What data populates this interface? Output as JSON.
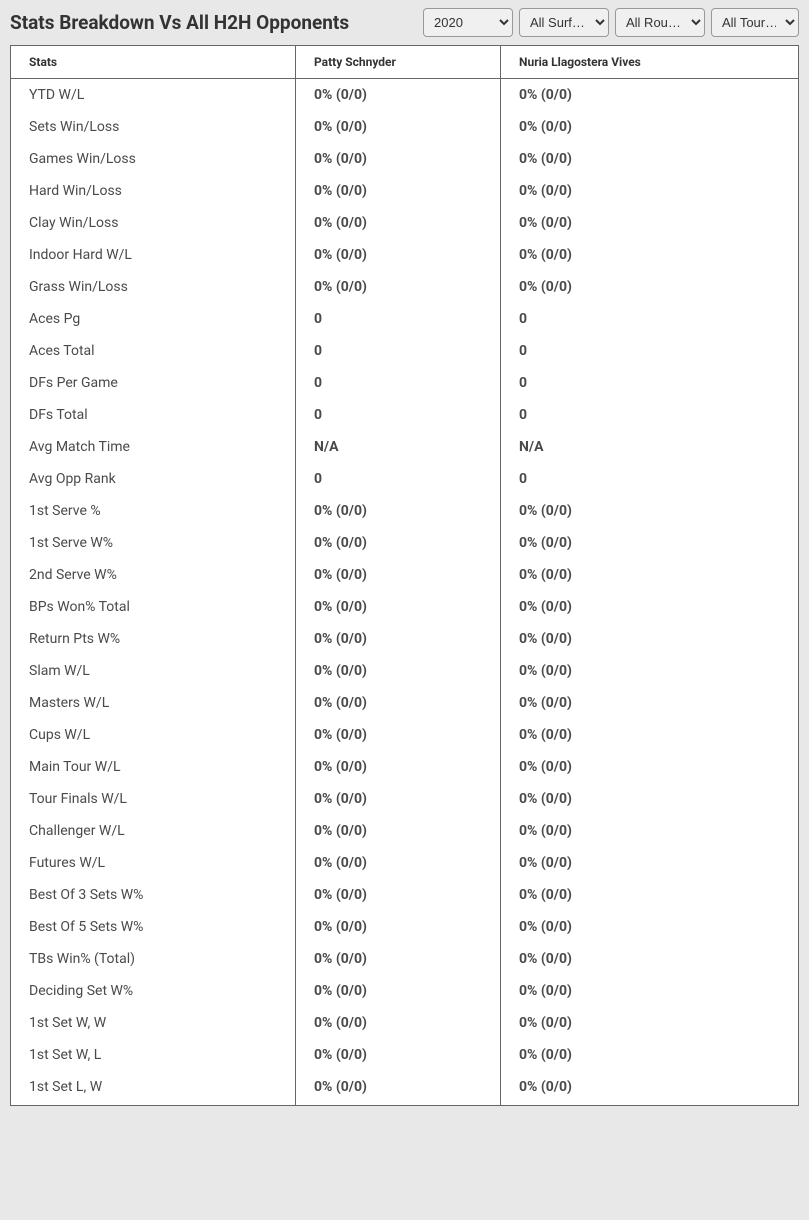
{
  "header": {
    "title": "Stats Breakdown Vs All H2H Opponents"
  },
  "filters": {
    "year": {
      "selected": "2020",
      "options": [
        "2020"
      ]
    },
    "surface": {
      "selected": "All Surf…",
      "options": [
        "All Surf…"
      ]
    },
    "round": {
      "selected": "All Rou…",
      "options": [
        "All Rou…"
      ]
    },
    "tournament": {
      "selected": "All Tour…",
      "options": [
        "All Tour…"
      ]
    }
  },
  "table": {
    "columns": [
      "Stats",
      "Patty Schnyder",
      "Nuria Llagostera Vives"
    ],
    "rows": [
      {
        "stat": "YTD W/L",
        "p1": "0% (0/0)",
        "p2": "0% (0/0)"
      },
      {
        "stat": "Sets Win/Loss",
        "p1": "0% (0/0)",
        "p2": "0% (0/0)"
      },
      {
        "stat": "Games Win/Loss",
        "p1": "0% (0/0)",
        "p2": "0% (0/0)"
      },
      {
        "stat": "Hard Win/Loss",
        "p1": "0% (0/0)",
        "p2": "0% (0/0)"
      },
      {
        "stat": "Clay Win/Loss",
        "p1": "0% (0/0)",
        "p2": "0% (0/0)"
      },
      {
        "stat": "Indoor Hard W/L",
        "p1": "0% (0/0)",
        "p2": "0% (0/0)"
      },
      {
        "stat": "Grass Win/Loss",
        "p1": "0% (0/0)",
        "p2": "0% (0/0)"
      },
      {
        "stat": "Aces Pg",
        "p1": "0",
        "p2": "0"
      },
      {
        "stat": "Aces Total",
        "p1": "0",
        "p2": "0"
      },
      {
        "stat": "DFs Per Game",
        "p1": "0",
        "p2": "0"
      },
      {
        "stat": "DFs Total",
        "p1": "0",
        "p2": "0"
      },
      {
        "stat": "Avg Match Time",
        "p1": "N/A",
        "p2": "N/A"
      },
      {
        "stat": "Avg Opp Rank",
        "p1": "0",
        "p2": "0"
      },
      {
        "stat": "1st Serve %",
        "p1": "0% (0/0)",
        "p2": "0% (0/0)"
      },
      {
        "stat": "1st Serve W%",
        "p1": "0% (0/0)",
        "p2": "0% (0/0)"
      },
      {
        "stat": "2nd Serve W%",
        "p1": "0% (0/0)",
        "p2": "0% (0/0)"
      },
      {
        "stat": "BPs Won% Total",
        "p1": "0% (0/0)",
        "p2": "0% (0/0)"
      },
      {
        "stat": "Return Pts W%",
        "p1": "0% (0/0)",
        "p2": "0% (0/0)"
      },
      {
        "stat": "Slam W/L",
        "p1": "0% (0/0)",
        "p2": "0% (0/0)"
      },
      {
        "stat": "Masters W/L",
        "p1": "0% (0/0)",
        "p2": "0% (0/0)"
      },
      {
        "stat": "Cups W/L",
        "p1": "0% (0/0)",
        "p2": "0% (0/0)"
      },
      {
        "stat": "Main Tour W/L",
        "p1": "0% (0/0)",
        "p2": "0% (0/0)"
      },
      {
        "stat": "Tour Finals W/L",
        "p1": "0% (0/0)",
        "p2": "0% (0/0)"
      },
      {
        "stat": "Challenger W/L",
        "p1": "0% (0/0)",
        "p2": "0% (0/0)"
      },
      {
        "stat": "Futures W/L",
        "p1": "0% (0/0)",
        "p2": "0% (0/0)"
      },
      {
        "stat": "Best Of 3 Sets W%",
        "p1": "0% (0/0)",
        "p2": "0% (0/0)"
      },
      {
        "stat": "Best Of 5 Sets W%",
        "p1": "0% (0/0)",
        "p2": "0% (0/0)"
      },
      {
        "stat": "TBs Win% (Total)",
        "p1": "0% (0/0)",
        "p2": "0% (0/0)"
      },
      {
        "stat": "Deciding Set W%",
        "p1": "0% (0/0)",
        "p2": "0% (0/0)"
      },
      {
        "stat": "1st Set W, W",
        "p1": "0% (0/0)",
        "p2": "0% (0/0)"
      },
      {
        "stat": "1st Set W, L",
        "p1": "0% (0/0)",
        "p2": "0% (0/0)"
      },
      {
        "stat": "1st Set L, W",
        "p1": "0% (0/0)",
        "p2": "0% (0/0)"
      }
    ]
  },
  "styling": {
    "background_color": "#e8e8e8",
    "table_background": "#ffffff",
    "border_color": "#666666",
    "title_color": "#333333",
    "text_color": "#4a4a4a",
    "title_fontsize": 19,
    "header_fontsize": 12,
    "cell_fontsize": 14
  }
}
